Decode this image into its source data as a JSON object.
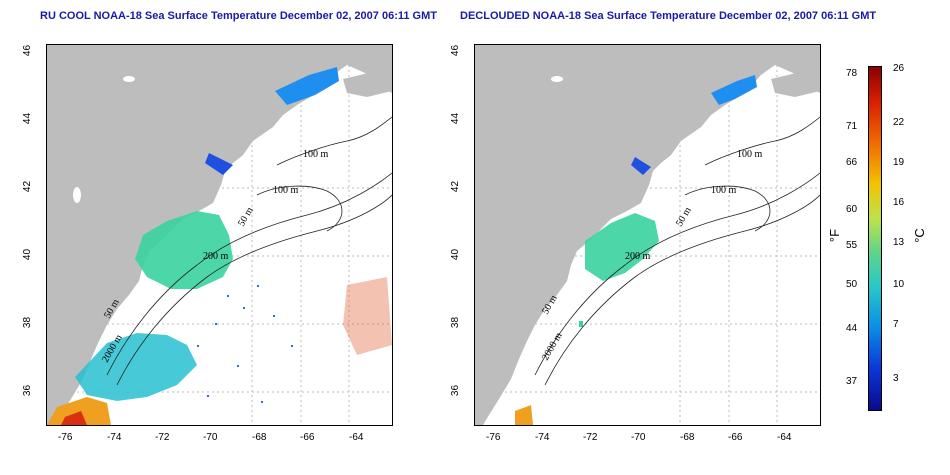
{
  "left_panel": {
    "title": "RU COOL NOAA-18 Sea Surface Temperature December 02, 2007 06:11 GMT"
  },
  "right_panel": {
    "title": "DECLOUDED NOAA-18 Sea Surface Temperature December 02, 2007 06:11 GMT"
  },
  "axes": {
    "lat_ticks": [
      "36",
      "38",
      "40",
      "42",
      "44",
      "46"
    ],
    "lon_ticks": [
      "-76",
      "-74",
      "-72",
      "-70",
      "-68",
      "-66",
      "-64"
    ]
  },
  "contours": [
    "100 m",
    "100 m",
    "50 m",
    "200 m",
    "50 m",
    "2000 m"
  ],
  "colorbar": {
    "f_label": "°F",
    "c_label": "°C",
    "f_ticks": [
      "78",
      "71",
      "66",
      "60",
      "55",
      "50",
      "44",
      "37"
    ],
    "c_ticks": [
      "26",
      "22",
      "19",
      "16",
      "13",
      "10",
      "7",
      "3"
    ]
  },
  "colors": {
    "land": "#bdbdbd",
    "title": "#1a1aa8"
  }
}
